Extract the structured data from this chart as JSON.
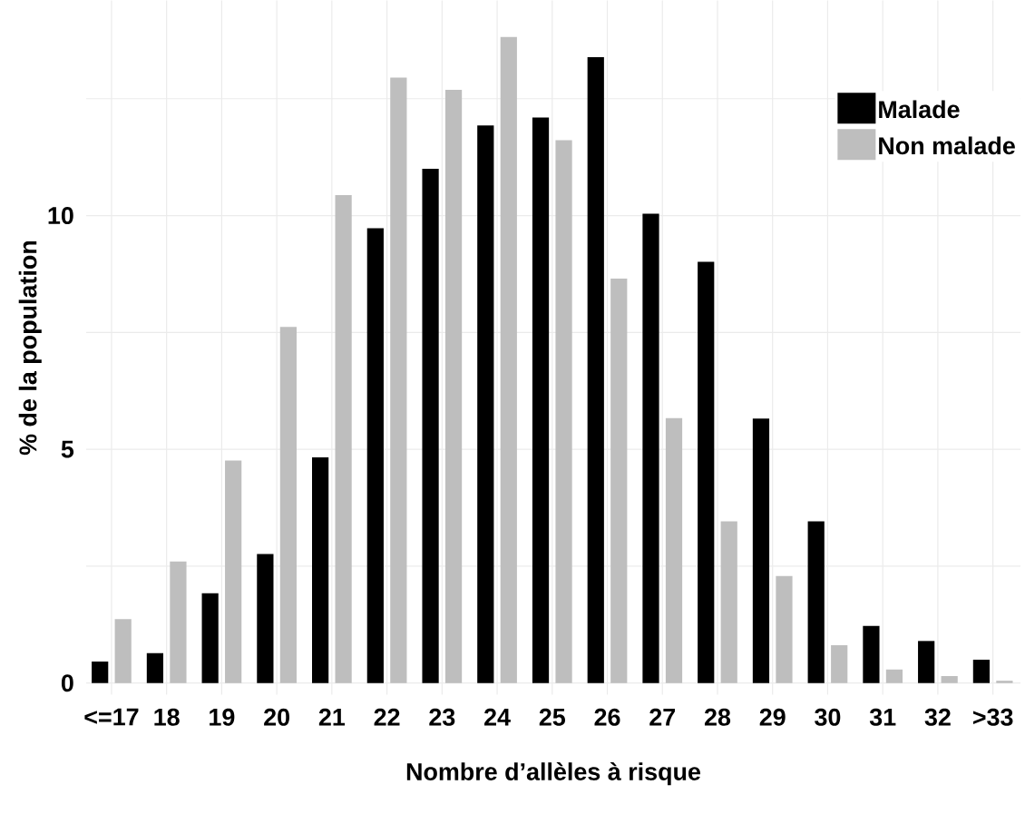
{
  "chart_data": {
    "type": "bar",
    "xlabel": "Nombre d’allèles à risque",
    "ylabel": "% de la population",
    "categories": [
      "<=17",
      "18",
      "19",
      "20",
      "21",
      "22",
      "23",
      "24",
      "25",
      "26",
      "27",
      "28",
      "29",
      "30",
      "31",
      "32",
      ">33"
    ],
    "series": [
      {
        "name": "Malade",
        "color": "#000000",
        "values": [
          0.46,
          0.64,
          1.92,
          2.76,
          4.83,
          9.73,
          11.0,
          11.93,
          12.1,
          13.39,
          10.04,
          9.01,
          5.66,
          3.46,
          1.22,
          0.9,
          0.5
        ]
      },
      {
        "name": "Non malade",
        "color": "#bebebe",
        "values": [
          1.37,
          2.6,
          4.76,
          7.62,
          10.44,
          12.95,
          12.69,
          13.82,
          11.61,
          8.65,
          5.67,
          3.46,
          2.29,
          0.81,
          0.29,
          0.15,
          0.05
        ]
      }
    ],
    "ylim": [
      -0.25,
      14.6
    ],
    "yticks": [
      0,
      {
        "value": 2.5,
        "label": null
      },
      5,
      {
        "value": 7.5,
        "label": null
      },
      10,
      {
        "value": 12.5,
        "label": null
      }
    ],
    "grid": true,
    "legend": "top right"
  }
}
